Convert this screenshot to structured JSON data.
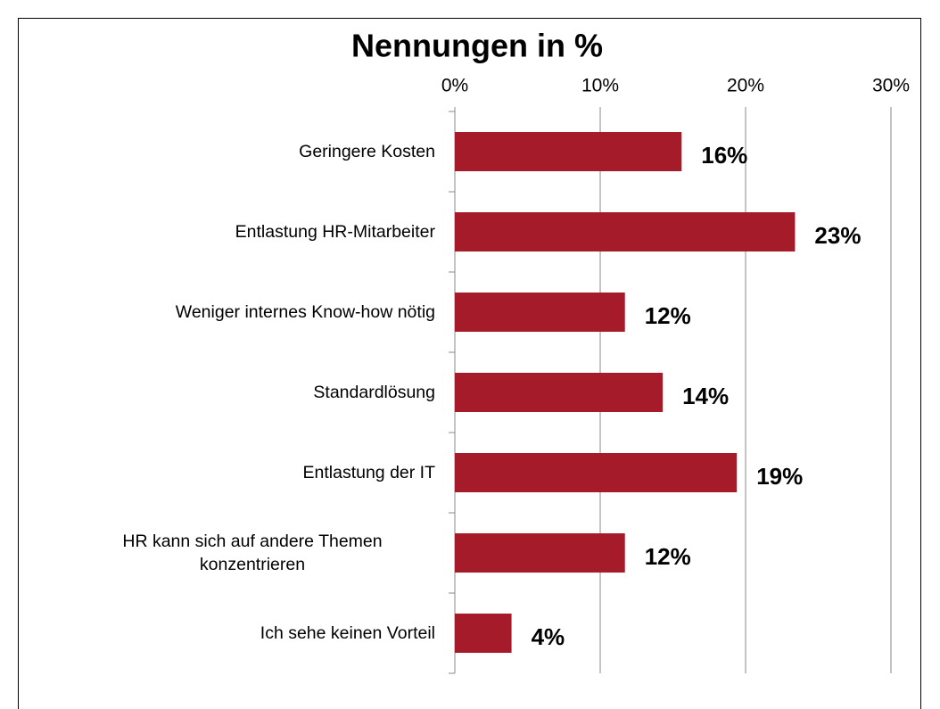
{
  "chart_data": {
    "type": "bar",
    "orientation": "horizontal",
    "title": "Nennungen in %",
    "categories": [
      "Geringere Kosten",
      "Entlastung HR-Mitarbeiter",
      "Weniger internes Know-how nötig",
      "Standardlösung",
      "Entlastung der IT",
      "HR kann sich auf andere Themen konzentrieren",
      "Ich sehe keinen Vorteil"
    ],
    "values": [
      15.6,
      23.4,
      11.7,
      14.3,
      19.4,
      11.7,
      3.9
    ],
    "value_labels": [
      "16%",
      "23%",
      "12%",
      "14%",
      "19%",
      "12%",
      "4%"
    ],
    "color": "#a51b2a",
    "xlim": [
      0,
      30
    ],
    "xticks": [
      {
        "value": 0,
        "label": "0%"
      },
      {
        "value": 10,
        "label": "10%"
      },
      {
        "value": 20,
        "label": "20%"
      },
      {
        "value": 30,
        "label": "30%"
      }
    ],
    "grid": true
  }
}
